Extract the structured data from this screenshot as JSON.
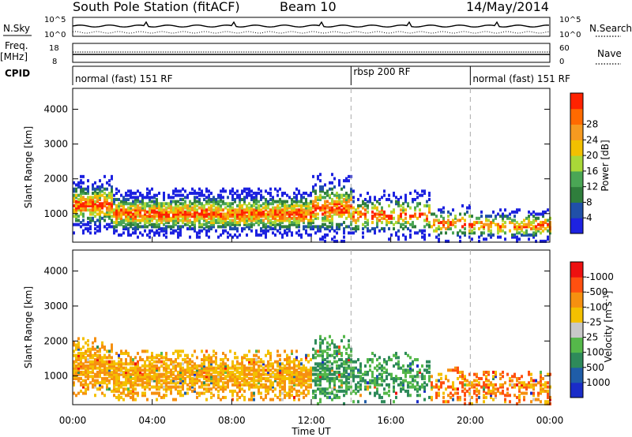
{
  "header": {
    "station": "South Pole Station (fitACF)",
    "beam": "Beam 10",
    "date": "14/May/2014"
  },
  "top_panels": {
    "nsky_label": "N.Sky",
    "nsky_ticks": [
      "10^5",
      "10^0"
    ],
    "nsearch_label": "N.Search",
    "freq_label": "Freq.",
    "freq_unit": "[MHz]",
    "freq_ticks": [
      "18",
      "8"
    ],
    "nave_label": "Nave",
    "nave_ticks": [
      "60",
      "0"
    ],
    "cpid_label": "CPID",
    "programs": [
      {
        "label": "normal (fast) 151 RF",
        "start_hour": 0,
        "end_hour": 14
      },
      {
        "label": "rbsp 200 RF",
        "start_hour": 14,
        "end_hour": 20
      },
      {
        "label": "normal (fast) 151 RF",
        "start_hour": 20,
        "end_hour": 24
      }
    ]
  },
  "chart_data": [
    {
      "type": "heatmap",
      "name": "power",
      "ylabel": "Slant Range [km]",
      "xlabel": "Time UT",
      "y_ticks": [
        1000,
        2000,
        3000,
        4000
      ],
      "ylim": [
        180,
        4600
      ],
      "x_ticks": [
        "00:00",
        "04:00",
        "08:00",
        "12:00",
        "16:00",
        "20:00",
        "00:00"
      ],
      "xlim_hours": [
        0,
        24
      ],
      "colorbar": {
        "label": "Power [dB]",
        "ticks": [
          "4",
          "8",
          "12",
          "16",
          "20",
          "24",
          "28"
        ],
        "colors": [
          "#1d22e0",
          "#2050a8",
          "#2f7e3c",
          "#4aa655",
          "#a9d838",
          "#f2c000",
          "#f59a20",
          "#ff6a00",
          "#ff2200"
        ]
      }
    },
    {
      "type": "heatmap",
      "name": "velocity",
      "ylabel": "Slant Range [km]",
      "xlabel": "Time UT",
      "y_ticks": [
        1000,
        2000,
        3000,
        4000
      ],
      "ylim": [
        180,
        4600
      ],
      "x_ticks": [
        "00:00",
        "04:00",
        "08:00",
        "12:00",
        "16:00",
        "20:00",
        "00:00"
      ],
      "xlim_hours": [
        0,
        24
      ],
      "colorbar": {
        "label": "Velocity [m s^-1]",
        "ticks": [
          "1000",
          "500",
          "100",
          "25",
          "-25",
          "-100",
          "-500",
          "-1000"
        ],
        "colors": [
          "#1a2cc8",
          "#1f5da8",
          "#2e8a5a",
          "#55b84a",
          "#c8c8c8",
          "#f4c000",
          "#f69010",
          "#ff5010",
          "#ee1010"
        ]
      }
    }
  ]
}
